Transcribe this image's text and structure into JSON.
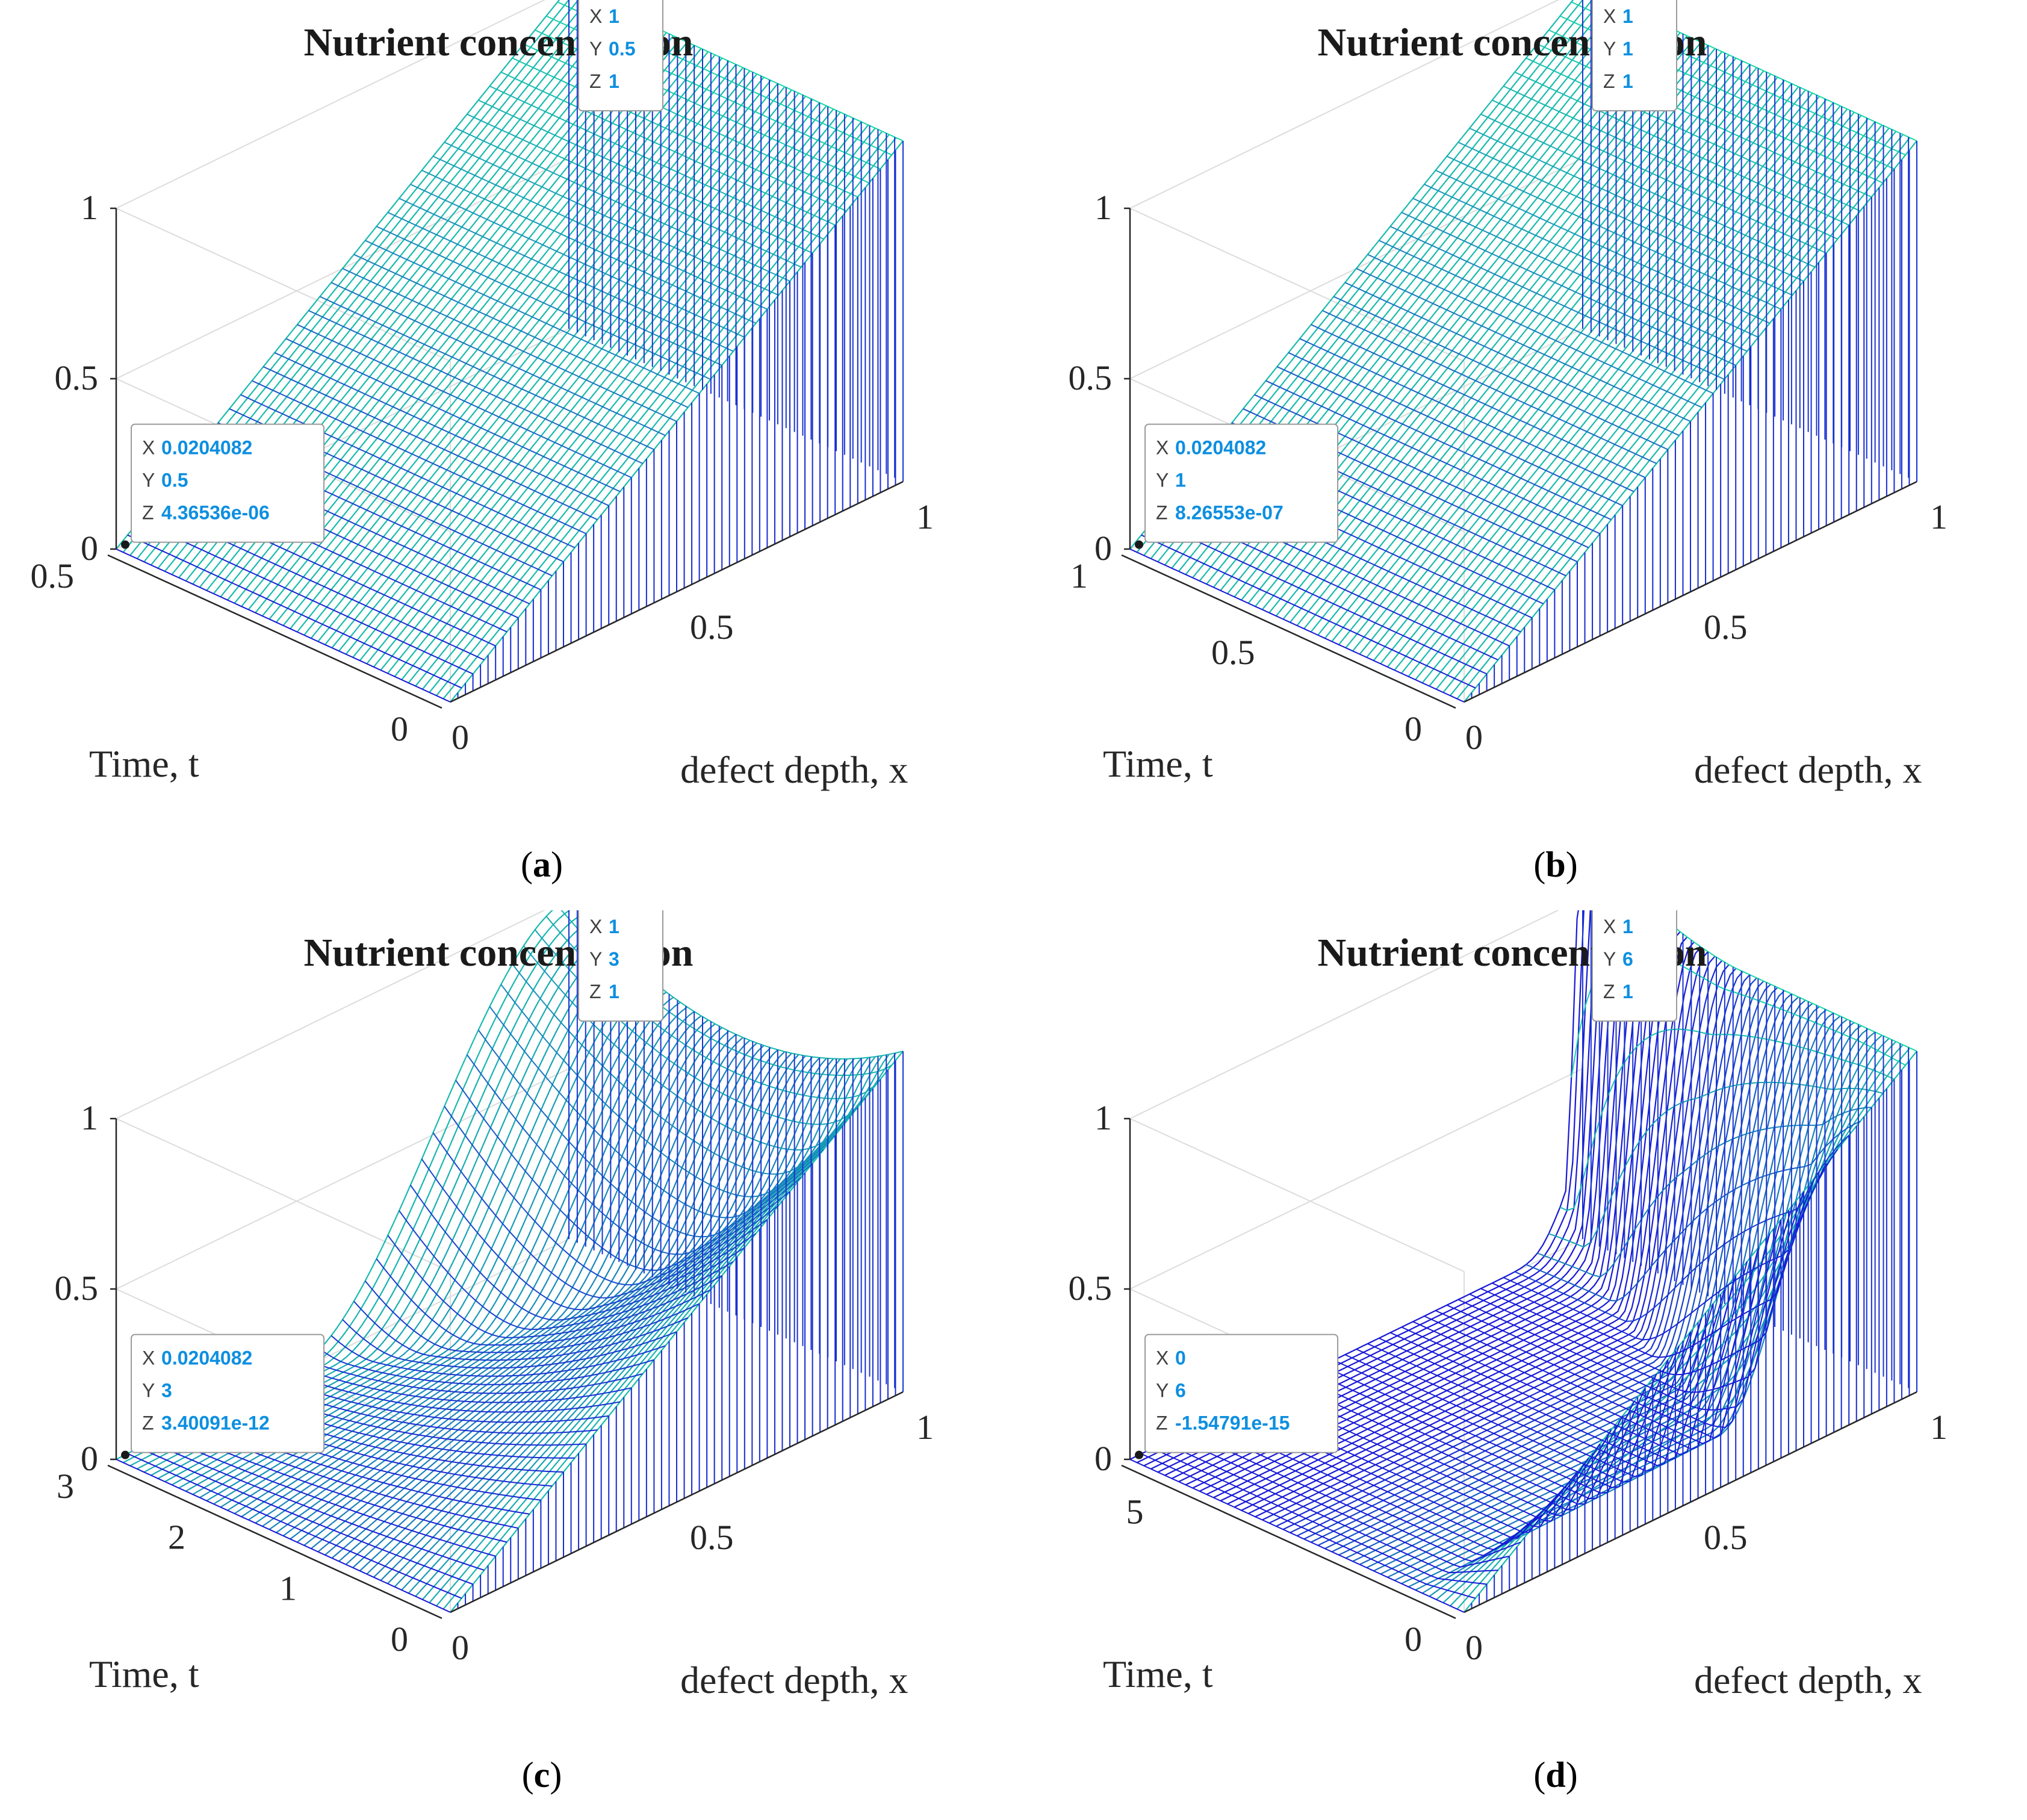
{
  "chart_data": [
    {
      "type": "surface",
      "title": "Nutrient concentration",
      "xlabel": "defect depth, x",
      "ylabel": "Time, t",
      "zlabel": "",
      "xlim": [
        0,
        1
      ],
      "ylim": [
        0,
        0.5
      ],
      "zlim": [
        0,
        1
      ],
      "xticks": [
        "0",
        "0.5",
        "1"
      ],
      "yticks": [
        "0",
        "0.5"
      ],
      "zticks": [
        "0",
        "0.5",
        "1"
      ],
      "surface_profile": "linear",
      "caption": {
        "open": "(",
        "letter": "a",
        "close": ")"
      },
      "datatips": [
        {
          "X": "1",
          "Y": "0.5",
          "Z": "1"
        },
        {
          "X": "0.0204082",
          "Y": "0.5",
          "Z": "4.36536e-06"
        }
      ]
    },
    {
      "type": "surface",
      "title": "Nutrient concentration",
      "xlabel": "defect depth, x",
      "ylabel": "Time, t",
      "zlabel": "",
      "xlim": [
        0,
        1
      ],
      "ylim": [
        0,
        1
      ],
      "zlim": [
        0,
        1
      ],
      "xticks": [
        "0",
        "0.5",
        "1"
      ],
      "yticks": [
        "0",
        "0.5",
        "1"
      ],
      "zticks": [
        "0",
        "0.5",
        "1"
      ],
      "surface_profile": "linear",
      "caption": {
        "open": "(",
        "letter": "b",
        "close": ")"
      },
      "datatips": [
        {
          "X": "1",
          "Y": "1",
          "Z": "1"
        },
        {
          "X": "0.0204082",
          "Y": "1",
          "Z": "8.26553e-07"
        }
      ]
    },
    {
      "type": "surface",
      "title": "Nutrient concentration",
      "xlabel": "defect depth, x",
      "ylabel": "Time, t",
      "zlabel": "",
      "xlim": [
        0,
        1
      ],
      "ylim": [
        0,
        3
      ],
      "zlim": [
        0,
        1
      ],
      "xticks": [
        "0",
        "0.5",
        "1"
      ],
      "yticks": [
        "0",
        "1",
        "2",
        "3"
      ],
      "zticks": [
        "0",
        "0.5",
        "1"
      ],
      "surface_profile": "smooth",
      "caption": {
        "open": "(",
        "letter": "c",
        "close": ")"
      },
      "datatips": [
        {
          "X": "1",
          "Y": "3",
          "Z": "1"
        },
        {
          "X": "0.0204082",
          "Y": "3",
          "Z": "3.40091e-12"
        }
      ]
    },
    {
      "type": "surface",
      "title": "Nutrient concentration",
      "xlabel": "defect depth, x",
      "ylabel": "Time, t",
      "zlabel": "",
      "xlim": [
        0,
        1
      ],
      "ylim": [
        0,
        6
      ],
      "zlim": [
        0,
        1
      ],
      "xticks": [
        "0",
        "0.5",
        "1"
      ],
      "yticks": [
        "0",
        "5"
      ],
      "zticks": [
        "0",
        "0.5",
        "1"
      ],
      "surface_profile": "bump",
      "caption": {
        "open": "(",
        "letter": "d",
        "close": ")"
      },
      "datatips": [
        {
          "X": "1",
          "Y": "6",
          "Z": "1"
        },
        {
          "X": "0",
          "Y": "6",
          "Z": "-1.54791e-15"
        }
      ]
    }
  ],
  "colors": {
    "surface_low": "#1818d8",
    "surface_high": "#18d8a8",
    "tip_value": "#0d8fe0",
    "grid": "#dcdcdc",
    "axis": "#262626"
  }
}
